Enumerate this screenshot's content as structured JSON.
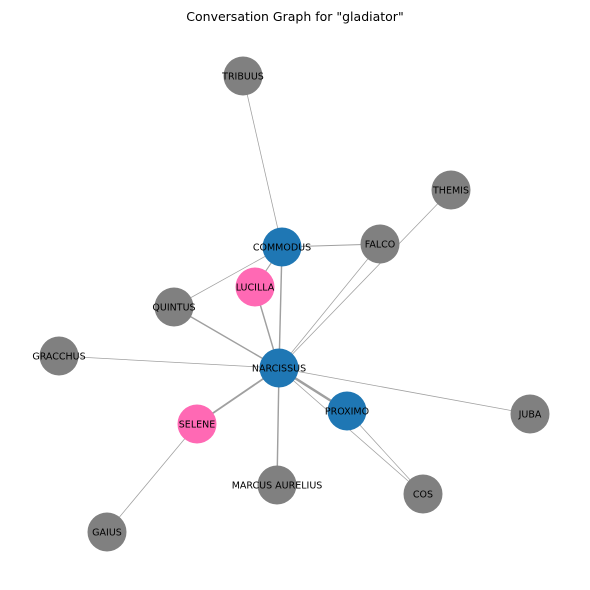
{
  "title": "Conversation Graph for \"gladiator\"",
  "colors": {
    "male": "#1f77b4",
    "female": "#ff69b4",
    "unknown": "#808080",
    "edge": "#a0a0a0",
    "background": "#ffffff"
  },
  "nodes": [
    {
      "id": "TRIBUUS",
      "label": "TRIBUUS",
      "group": "unknown"
    },
    {
      "id": "THEMIS",
      "label": "THEMIS",
      "group": "unknown"
    },
    {
      "id": "COMMODUS",
      "label": "COMMODUS",
      "group": "male"
    },
    {
      "id": "FALCO",
      "label": "FALCO",
      "group": "unknown"
    },
    {
      "id": "LUCILLA",
      "label": "LUCILLA",
      "group": "female"
    },
    {
      "id": "QUINTUS",
      "label": "QUINTUS",
      "group": "unknown"
    },
    {
      "id": "GRACCHUS",
      "label": "GRACCHUS",
      "group": "unknown"
    },
    {
      "id": "NARCISSUS",
      "label": "NARCISSUS",
      "group": "male"
    },
    {
      "id": "PROXIMO",
      "label": "PROXIMO",
      "group": "male"
    },
    {
      "id": "JUBA",
      "label": "JUBA",
      "group": "unknown"
    },
    {
      "id": "SELENE",
      "label": "SELENE",
      "group": "female"
    },
    {
      "id": "MARCUS AURELIUS",
      "label": "MARCUS AURELIUS",
      "group": "unknown"
    },
    {
      "id": "COS",
      "label": "COS",
      "group": "unknown"
    },
    {
      "id": "GAIUS",
      "label": "GAIUS",
      "group": "unknown"
    }
  ],
  "edges": [
    {
      "source": "TRIBUUS",
      "target": "COMMODUS",
      "weight": 1
    },
    {
      "source": "COMMODUS",
      "target": "FALCO",
      "weight": 2
    },
    {
      "source": "COMMODUS",
      "target": "QUINTUS",
      "weight": 1
    },
    {
      "source": "COMMODUS",
      "target": "LUCILLA",
      "weight": 2
    },
    {
      "source": "COMMODUS",
      "target": "NARCISSUS",
      "weight": 3
    },
    {
      "source": "LUCILLA",
      "target": "NARCISSUS",
      "weight": 3
    },
    {
      "source": "QUINTUS",
      "target": "NARCISSUS",
      "weight": 3
    },
    {
      "source": "GRACCHUS",
      "target": "NARCISSUS",
      "weight": 1
    },
    {
      "source": "THEMIS",
      "target": "NARCISSUS",
      "weight": 1
    },
    {
      "source": "FALCO",
      "target": "NARCISSUS",
      "weight": 1
    },
    {
      "source": "NARCISSUS",
      "target": "PROXIMO",
      "weight": 6
    },
    {
      "source": "NARCISSUS",
      "target": "JUBA",
      "weight": 1
    },
    {
      "source": "NARCISSUS",
      "target": "SELENE",
      "weight": 4
    },
    {
      "source": "NARCISSUS",
      "target": "MARCUS AURELIUS",
      "weight": 3
    },
    {
      "source": "NARCISSUS",
      "target": "COS",
      "weight": 1
    },
    {
      "source": "PROXIMO",
      "target": "COS",
      "weight": 1
    },
    {
      "source": "SELENE",
      "target": "GAIUS",
      "weight": 1
    }
  ]
}
